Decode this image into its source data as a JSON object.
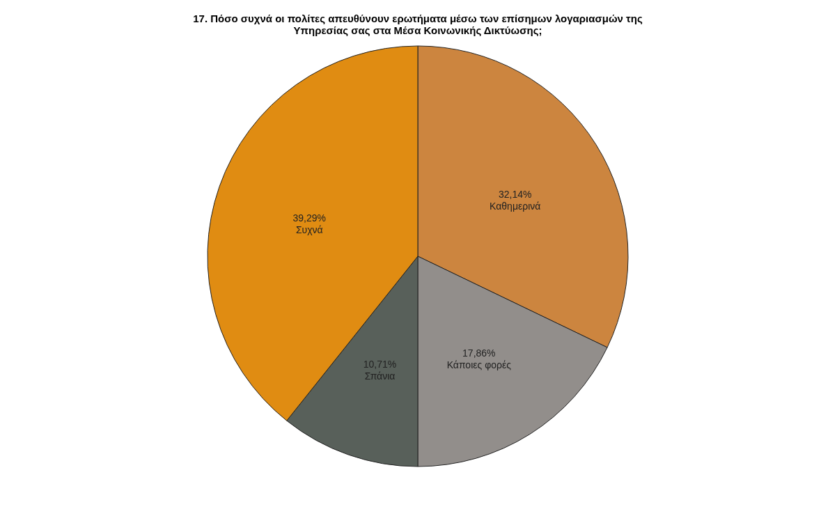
{
  "chart_data": {
    "type": "pie",
    "title": "17. Πόσο συχνά οι πολίτες απευθύνουν ερωτήματα  μέσω των επίσημων λογαριασμών της\nΥπηρεσίας σας στα Μέσα Κοινωνικής Δικτύωσης;",
    "categories": [
      "Καθημερινά",
      "Κάποιες φορές",
      "Σπάνια",
      "Συχνά"
    ],
    "values": [
      32.14,
      17.86,
      10.71,
      39.29
    ],
    "value_labels": [
      "32,14%",
      "17,86%",
      "10,71%",
      "39,29%"
    ],
    "colors": [
      "#cc853f",
      "#928e8b",
      "#58605a",
      "#e08c12"
    ],
    "legend": false
  }
}
